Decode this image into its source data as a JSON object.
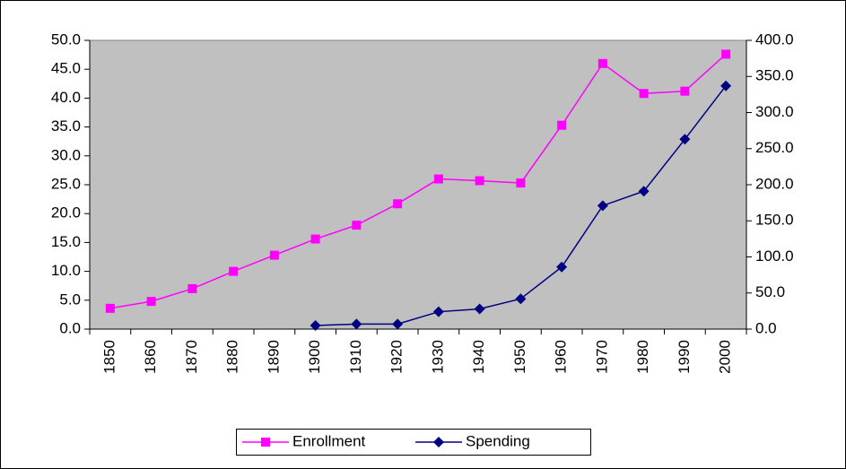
{
  "chart_data": {
    "type": "line",
    "categories": [
      "1850",
      "1860",
      "1870",
      "1880",
      "1890",
      "1900",
      "1910",
      "1920",
      "1930",
      "1940",
      "1950",
      "1960",
      "1970",
      "1980",
      "1990",
      "2000"
    ],
    "series": [
      {
        "name": "Enrollment",
        "color": "#ff00ff",
        "marker": "square",
        "values": [
          3.6,
          4.8,
          7.0,
          10.0,
          12.8,
          15.6,
          18.0,
          21.7,
          26.0,
          25.7,
          25.3,
          35.3,
          46.0,
          40.8,
          41.2,
          47.6
        ]
      },
      {
        "name": "Spending",
        "color": "#000080",
        "marker": "diamond",
        "axis": "y2",
        "values": [
          null,
          null,
          null,
          null,
          null,
          5,
          7,
          7,
          24,
          28,
          42,
          86,
          171,
          191,
          263,
          337
        ]
      }
    ],
    "ylim": [
      0,
      50
    ],
    "yticks": [
      {
        "value": 0,
        "label": "0.0"
      },
      {
        "value": 5,
        "label": "5.0"
      },
      {
        "value": 10,
        "label": "10.0"
      },
      {
        "value": 15,
        "label": "15.0"
      },
      {
        "value": 20,
        "label": "20.0"
      },
      {
        "value": 25,
        "label": "25.0"
      },
      {
        "value": 30,
        "label": "30.0"
      },
      {
        "value": 35,
        "label": "35.0"
      },
      {
        "value": 40,
        "label": "40.0"
      },
      {
        "value": 45,
        "label": "45.0"
      },
      {
        "value": 50,
        "label": "50.0"
      }
    ],
    "y2lim": [
      0,
      400
    ],
    "y2ticks": [
      {
        "value": 0,
        "label": "0.0"
      },
      {
        "value": 50,
        "label": "50.0"
      },
      {
        "value": 100,
        "label": "100.0"
      },
      {
        "value": 150,
        "label": "150.0"
      },
      {
        "value": 200,
        "label": "200.0"
      },
      {
        "value": 250,
        "label": "250.0"
      },
      {
        "value": 300,
        "label": "300.0"
      },
      {
        "value": 350,
        "label": "350.0"
      },
      {
        "value": 400,
        "label": "400.0"
      }
    ],
    "legend": "bottom",
    "grid": false
  }
}
